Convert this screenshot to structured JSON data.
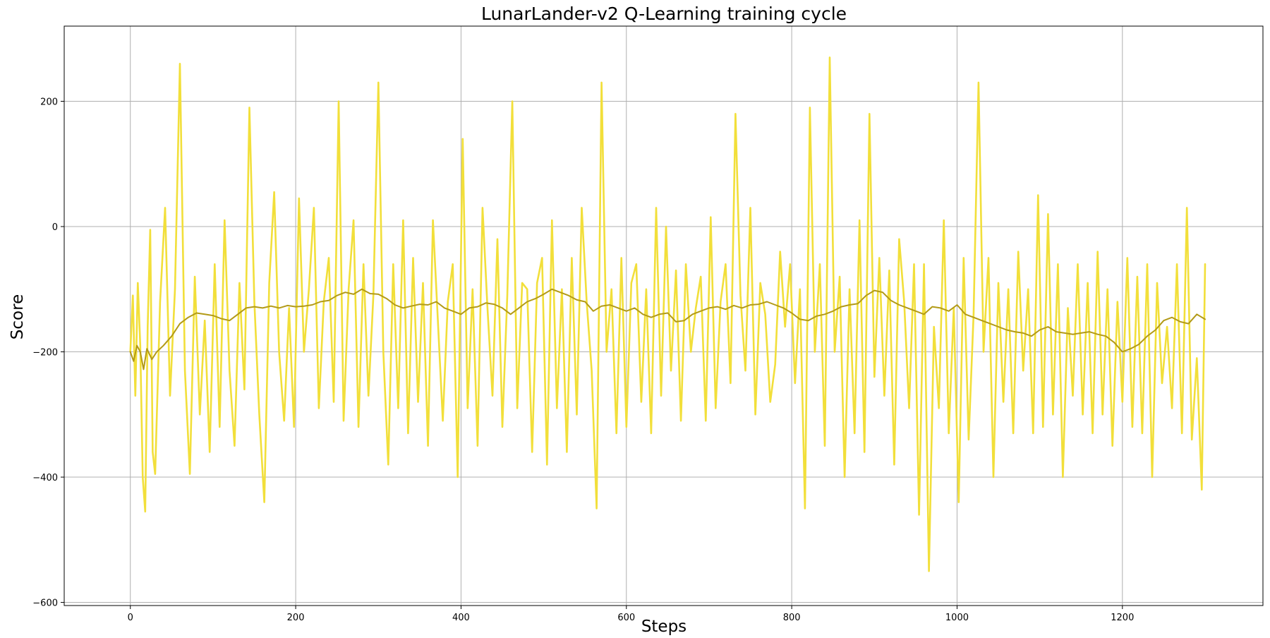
{
  "chart_data": {
    "type": "line",
    "title": "LunarLander-v2 Q-Learning training cycle",
    "xlabel": "Steps",
    "ylabel": "Score",
    "xlim": [
      -80,
      1370
    ],
    "ylim": [
      -605,
      320
    ],
    "xticks": [
      0,
      200,
      400,
      600,
      800,
      1000,
      1200
    ],
    "yticks": [
      -600,
      -400,
      -200,
      0,
      200
    ],
    "grid": true,
    "colors": {
      "raw": "#f2df3a",
      "smoothed": "#b29a17"
    },
    "series": [
      {
        "role": "raw-score",
        "points_x": [
          0,
          3,
          6,
          9,
          12,
          15,
          18,
          21,
          24,
          27,
          30,
          36,
          42,
          48,
          54,
          60,
          66,
          72,
          78,
          84,
          90,
          96,
          102,
          108,
          114,
          120,
          126,
          132,
          138,
          144,
          150,
          156,
          162,
          168,
          174,
          180,
          186,
          192,
          198,
          204,
          210,
          216,
          222,
          228,
          234,
          240,
          246,
          252,
          258,
          264,
          270,
          276,
          282,
          288,
          294,
          300,
          306,
          312,
          318,
          324,
          330,
          336,
          342,
          348,
          354,
          360,
          366,
          372,
          378,
          384,
          390,
          396,
          402,
          408,
          414,
          420,
          426,
          432,
          438,
          444,
          450,
          456,
          462,
          468,
          474,
          480,
          486,
          492,
          498,
          504,
          510,
          516,
          522,
          528,
          534,
          540,
          546,
          552,
          558,
          564,
          570,
          576,
          582,
          588,
          594,
          600,
          606,
          612,
          618,
          624,
          630,
          636,
          642,
          648,
          654,
          660,
          666,
          672,
          678,
          684,
          690,
          696,
          702,
          708,
          714,
          720,
          726,
          732,
          738,
          744,
          750,
          756,
          762,
          768,
          774,
          780,
          786,
          792,
          798,
          804,
          810,
          816,
          822,
          828,
          834,
          840,
          846,
          852,
          858,
          864,
          870,
          876,
          882,
          888,
          894,
          900,
          906,
          912,
          918,
          924,
          930,
          936,
          942,
          948,
          954,
          960,
          966,
          972,
          978,
          984,
          990,
          996,
          1002,
          1008,
          1014,
          1020,
          1026,
          1032,
          1038,
          1044,
          1050,
          1056,
          1062,
          1068,
          1074,
          1080,
          1086,
          1092,
          1098,
          1104,
          1110,
          1116,
          1122,
          1128,
          1134,
          1140,
          1146,
          1152,
          1158,
          1164,
          1170,
          1176,
          1182,
          1188,
          1194,
          1200,
          1206,
          1212,
          1218,
          1224,
          1230,
          1236,
          1242,
          1248,
          1254,
          1260,
          1266,
          1272,
          1278,
          1284,
          1290,
          1296,
          1300
        ],
        "points_y": [
          -200,
          -110,
          -270,
          -90,
          -190,
          -400,
          -455,
          -160,
          -5,
          -360,
          -395,
          -120,
          30,
          -270,
          -100,
          260,
          -230,
          -395,
          -80,
          -300,
          -150,
          -360,
          -60,
          -320,
          10,
          -230,
          -350,
          -90,
          -260,
          190,
          -120,
          -300,
          -440,
          -90,
          55,
          -200,
          -310,
          -130,
          -320,
          45,
          -200,
          -100,
          30,
          -290,
          -120,
          -50,
          -280,
          200,
          -310,
          -100,
          10,
          -320,
          -60,
          -270,
          -110,
          230,
          -200,
          -380,
          -60,
          -290,
          10,
          -330,
          -50,
          -280,
          -90,
          -350,
          10,
          -150,
          -310,
          -120,
          -60,
          -400,
          140,
          -290,
          -100,
          -350,
          30,
          -130,
          -270,
          -20,
          -320,
          -110,
          200,
          -290,
          -90,
          -100,
          -360,
          -90,
          -50,
          -380,
          10,
          -290,
          -100,
          -360,
          -50,
          -300,
          30,
          -120,
          -230,
          -450,
          230,
          -200,
          -100,
          -330,
          -50,
          -320,
          -90,
          -60,
          -280,
          -100,
          -330,
          30,
          -270,
          0,
          -230,
          -70,
          -310,
          -60,
          -200,
          -130,
          -80,
          -310,
          15,
          -290,
          -120,
          -60,
          -250,
          180,
          -110,
          -230,
          30,
          -300,
          -90,
          -140,
          -280,
          -220,
          -40,
          -160,
          -60,
          -250,
          -100,
          -450,
          190,
          -200,
          -60,
          -350,
          270,
          -200,
          -80,
          -400,
          -100,
          -330,
          10,
          -360,
          180,
          -240,
          -50,
          -270,
          -70,
          -380,
          -20,
          -120,
          -290,
          -60,
          -460,
          -60,
          -550,
          -160,
          -290,
          10,
          -330,
          -130,
          -440,
          -50,
          -340,
          -140,
          230,
          -200,
          -50,
          -400,
          -90,
          -280,
          -100,
          -330,
          -40,
          -230,
          -100,
          -330,
          50,
          -320,
          20,
          -300,
          -60,
          -400,
          -130,
          -270,
          -60,
          -300,
          -90,
          -330,
          -40,
          -300,
          -100,
          -350,
          -120,
          -280,
          -50,
          -320,
          -80,
          -330,
          -60,
          -400,
          -90,
          -250,
          -160,
          -290,
          -60,
          -330,
          30,
          -340,
          -210,
          -420,
          -60
        ]
      },
      {
        "role": "moving-average",
        "points_x": [
          0,
          4,
          8,
          12,
          16,
          20,
          26,
          32,
          40,
          50,
          60,
          70,
          80,
          90,
          100,
          110,
          120,
          130,
          140,
          150,
          160,
          170,
          180,
          190,
          200,
          210,
          220,
          230,
          240,
          250,
          260,
          270,
          280,
          290,
          300,
          310,
          320,
          330,
          340,
          350,
          360,
          370,
          380,
          390,
          400,
          410,
          420,
          430,
          440,
          450,
          460,
          470,
          480,
          490,
          500,
          510,
          520,
          530,
          540,
          550,
          560,
          570,
          580,
          590,
          600,
          610,
          620,
          630,
          640,
          650,
          660,
          670,
          680,
          690,
          700,
          710,
          720,
          730,
          740,
          750,
          760,
          770,
          780,
          790,
          800,
          810,
          820,
          830,
          840,
          850,
          860,
          870,
          880,
          890,
          900,
          910,
          920,
          930,
          940,
          950,
          960,
          970,
          980,
          990,
          1000,
          1010,
          1020,
          1030,
          1040,
          1050,
          1060,
          1070,
          1080,
          1090,
          1100,
          1110,
          1120,
          1130,
          1140,
          1150,
          1160,
          1170,
          1180,
          1190,
          1200,
          1210,
          1220,
          1230,
          1240,
          1250,
          1260,
          1270,
          1280,
          1290,
          1300
        ],
        "points_y": [
          -200,
          -215,
          -190,
          -200,
          -228,
          -195,
          -212,
          -200,
          -190,
          -175,
          -155,
          -145,
          -138,
          -140,
          -142,
          -147,
          -150,
          -140,
          -130,
          -128,
          -130,
          -127,
          -130,
          -126,
          -128,
          -127,
          -125,
          -120,
          -118,
          -110,
          -105,
          -108,
          -100,
          -107,
          -108,
          -115,
          -125,
          -130,
          -127,
          -124,
          -125,
          -120,
          -130,
          -135,
          -140,
          -130,
          -128,
          -122,
          -124,
          -130,
          -140,
          -130,
          -120,
          -115,
          -108,
          -100,
          -105,
          -110,
          -117,
          -120,
          -135,
          -127,
          -125,
          -130,
          -135,
          -130,
          -140,
          -145,
          -140,
          -138,
          -152,
          -150,
          -140,
          -135,
          -130,
          -128,
          -132,
          -126,
          -130,
          -125,
          -124,
          -120,
          -125,
          -130,
          -138,
          -148,
          -150,
          -143,
          -140,
          -135,
          -128,
          -125,
          -123,
          -110,
          -102,
          -105,
          -118,
          -125,
          -130,
          -135,
          -140,
          -128,
          -130,
          -135,
          -125,
          -140,
          -145,
          -150,
          -155,
          -160,
          -165,
          -168,
          -170,
          -175,
          -165,
          -160,
          -168,
          -170,
          -172,
          -170,
          -168,
          -172,
          -175,
          -185,
          -200,
          -195,
          -188,
          -175,
          -165,
          -150,
          -145,
          -152,
          -155,
          -140,
          -148
        ]
      }
    ]
  }
}
